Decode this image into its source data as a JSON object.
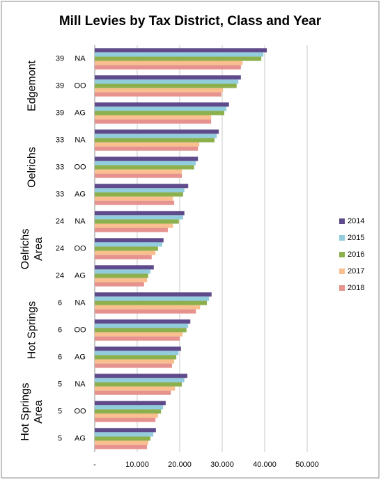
{
  "chart_data": {
    "type": "bar",
    "orientation": "horizontal",
    "title": "Mill Levies by Tax District, Class and Year",
    "groups": [
      "Edgemont",
      "Oelrichs",
      "Oelrichs Area",
      "Hot Springs",
      "Hot Springs Area"
    ],
    "districts": [
      "39",
      "39",
      "39",
      "33",
      "33",
      "33",
      "24",
      "24",
      "24",
      "6",
      "6",
      "6",
      "5",
      "5",
      "5"
    ],
    "categories": [
      "NA",
      "OO",
      "AG",
      "NA",
      "OO",
      "AG",
      "NA",
      "OO",
      "AG",
      "NA",
      "OO",
      "AG",
      "NA",
      "OO",
      "AG"
    ],
    "series": [
      {
        "name": "2014",
        "color": "#5f4b8b",
        "values": [
          40.5,
          34.4,
          31.6,
          29.2,
          24.3,
          22.0,
          21.1,
          16.2,
          13.9,
          27.5,
          22.5,
          20.3,
          21.8,
          16.7,
          14.4
        ]
      },
      {
        "name": "2015",
        "color": "#93cddd",
        "values": [
          39.7,
          33.8,
          31.0,
          28.7,
          23.8,
          21.1,
          20.8,
          15.9,
          13.1,
          26.9,
          22.0,
          19.7,
          21.1,
          16.1,
          13.8
        ]
      },
      {
        "name": "2016",
        "color": "#8cb04c",
        "values": [
          39.2,
          33.4,
          30.5,
          28.2,
          23.4,
          20.8,
          19.8,
          14.9,
          12.6,
          26.4,
          21.6,
          19.2,
          20.5,
          15.6,
          13.1
        ]
      },
      {
        "name": "2017",
        "color": "#f9bf8f",
        "values": [
          34.8,
          30.2,
          27.4,
          24.6,
          20.5,
          18.4,
          18.4,
          14.3,
          12.3,
          24.8,
          20.7,
          18.7,
          18.9,
          14.9,
          12.6
        ]
      },
      {
        "name": "2018",
        "color": "#e6928f",
        "values": [
          34.4,
          29.8,
          27.4,
          24.3,
          20.5,
          18.7,
          17.2,
          13.4,
          11.6,
          23.8,
          20.0,
          18.2,
          17.9,
          14.3,
          12.3
        ]
      }
    ],
    "xlim": [
      0,
      50
    ],
    "xticks": [
      {
        "value": 0,
        "label": "-"
      },
      {
        "value": 10,
        "label": "10.000"
      },
      {
        "value": 20,
        "label": "20.000"
      },
      {
        "value": 30,
        "label": "30.000"
      },
      {
        "value": 40,
        "label": "40.000"
      },
      {
        "value": 50,
        "label": "50.000"
      }
    ],
    "grid": true,
    "legend": "right"
  }
}
